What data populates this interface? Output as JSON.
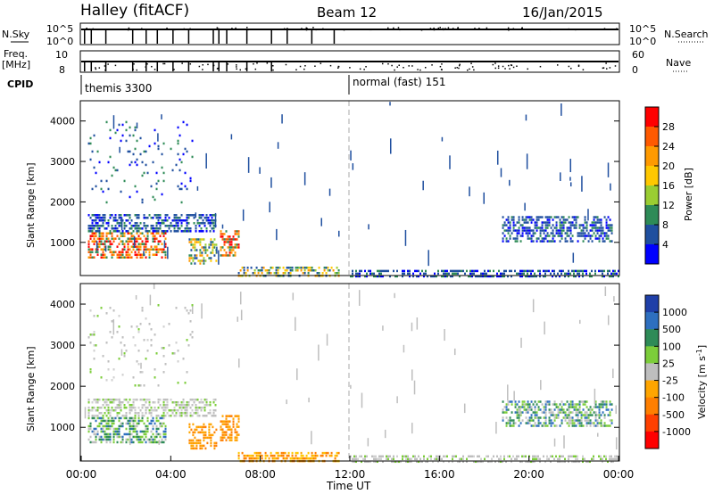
{
  "header": {
    "station": "Halley (fitACF)",
    "beam": "Beam 12",
    "date": "16/Jan/2015"
  },
  "panels": {
    "nsky": {
      "left_label": "N.Sky",
      "ticks_left": [
        "10^5",
        "10^0"
      ],
      "ticks_right": [
        "10^5",
        "10^0"
      ],
      "right_label": "N.Search"
    },
    "freq": {
      "left_label": "Freq.",
      "left_unit": "[MHz]",
      "ticks_left": [
        "10",
        "8"
      ],
      "ticks_right": [
        "60",
        "0"
      ],
      "right_label": "Nave"
    },
    "cpid": {
      "label": "CPID",
      "modes": [
        "themis 3300",
        "normal (fast) 151"
      ]
    }
  },
  "axes": {
    "ylabel": "Slant Range [km]",
    "yticks": [
      "4000",
      "3000",
      "2000",
      "1000"
    ],
    "xticks": [
      "00:00",
      "04:00",
      "08:00",
      "12:00",
      "16:00",
      "20:00",
      "00:00"
    ],
    "xlabel": "Time UT"
  },
  "colorbars": {
    "power": {
      "label": "Power [dB]",
      "ticks": [
        "28",
        "24",
        "20",
        "16",
        "12",
        "8",
        "4"
      ],
      "colors": [
        "#ff0000",
        "#ff5a00",
        "#ff9a00",
        "#ffc800",
        "#9acd32",
        "#2e8b57",
        "#1f4f9f",
        "#0000ff"
      ]
    },
    "velocity": {
      "label": "Velocity [m s",
      "label_sup": "-1",
      "label_end": "]",
      "ticks": [
        "1000",
        "500",
        "100",
        "25",
        "-25",
        "-100",
        "-500",
        "-1000"
      ],
      "colors": [
        "#1f3fa8",
        "#2e6fbf",
        "#2e8b57",
        "#7ccd3a",
        "#bebebe",
        "#ffa500",
        "#ff7f00",
        "#ff4000",
        "#ff0000"
      ]
    }
  },
  "chart_data": {
    "type": "heatmap",
    "x_range_hours": [
      0,
      24
    ],
    "y_range_km": [
      180,
      4500
    ],
    "mode_change_hour": 12,
    "regions": [
      {
        "t0": 0.3,
        "t1": 3.8,
        "r0": 600,
        "r1": 1250,
        "power": "high",
        "velocity": "positive-low"
      },
      {
        "t0": 6.2,
        "t1": 7.0,
        "r0": 650,
        "r1": 1300,
        "power": "high",
        "velocity": "negative-mid"
      },
      {
        "t0": 4.8,
        "t1": 6.0,
        "r0": 500,
        "r1": 1100,
        "power": "mid",
        "velocity": "negative-mid"
      },
      {
        "t0": 0.3,
        "t1": 6.0,
        "r0": 1300,
        "r1": 1700,
        "power": "low",
        "velocity": "near-zero"
      },
      {
        "t0": 7.0,
        "t1": 11.5,
        "r0": 180,
        "r1": 400,
        "power": "mid",
        "velocity": "negative-high"
      },
      {
        "t0": 12.0,
        "t1": 24.0,
        "r0": 180,
        "r1": 320,
        "power": "low",
        "velocity": "near-zero"
      },
      {
        "t0": 18.8,
        "t1": 23.7,
        "r0": 1000,
        "r1": 1650,
        "power": "low",
        "velocity": "positive-low"
      },
      {
        "t0": 0.3,
        "t1": 5.0,
        "r0": 2000,
        "r1": 4000,
        "power": "low",
        "velocity": "near-zero"
      }
    ]
  }
}
